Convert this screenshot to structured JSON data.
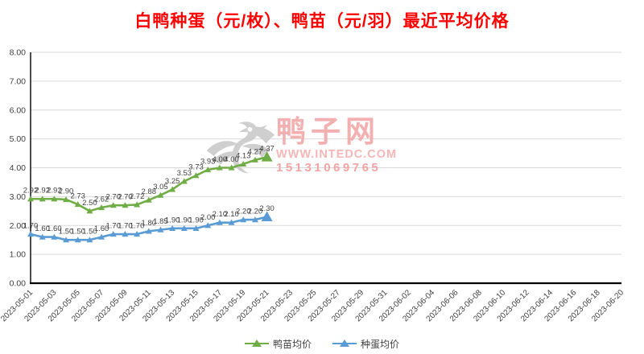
{
  "title": "白鸭种蛋（元/枚）、鸭苗（元/羽）最近平均价格",
  "title_color": "#FF0000",
  "watermark": {
    "logo_icon": "duck-wings-logo",
    "logo_color": "#C9C9C9",
    "site_name": "鸭子网",
    "url": "WWW.INTEDC.COM",
    "phone": "15131069765",
    "text_color": "#F2A3A3"
  },
  "chart_data": {
    "type": "line",
    "title": "白鸭种蛋（元/枚）、鸭苗（元/羽）最近平均价格",
    "x": [
      "2023-05-01",
      "2023-05-02",
      "2023-05-03",
      "2023-05-04",
      "2023-05-05",
      "2023-05-06",
      "2023-05-07",
      "2023-05-08",
      "2023-05-09",
      "2023-05-10",
      "2023-05-11",
      "2023-05-12",
      "2023-05-13",
      "2023-05-14",
      "2023-05-15",
      "2023-05-16",
      "2023-05-17",
      "2023-05-18",
      "2023-05-19",
      "2023-05-20",
      "2023-05-21"
    ],
    "x_axis_ticks": [
      "2023-05-01",
      "2023-05-03",
      "2023-05-05",
      "2023-05-07",
      "2023-05-09",
      "2023-05-11",
      "2023-05-13",
      "2023-05-15",
      "2023-05-17",
      "2023-05-19",
      "2023-05-21",
      "2023-05-23",
      "2023-05-25",
      "2023-05-27",
      "2023-05-29",
      "2023-05-31",
      "2023-06-02",
      "2023-06-04",
      "2023-06-06",
      "2023-06-08",
      "2023-06-10",
      "2023-06-12",
      "2023-06-14",
      "2023-06-16",
      "2023-06-18",
      "2023-06-20"
    ],
    "series": [
      {
        "name": "鸭苗均价",
        "color": "#70AD47",
        "marker": "triangle",
        "values": [
          2.92,
          2.92,
          2.92,
          2.9,
          2.73,
          2.5,
          2.62,
          2.7,
          2.7,
          2.72,
          2.88,
          3.05,
          3.25,
          3.53,
          3.73,
          3.93,
          4.0,
          4.0,
          4.13,
          4.27,
          4.37
        ]
      },
      {
        "name": "种蛋均价",
        "color": "#5B9BD5",
        "marker": "triangle",
        "values": [
          1.7,
          1.6,
          1.6,
          1.5,
          1.5,
          1.5,
          1.6,
          1.7,
          1.7,
          1.7,
          1.8,
          1.85,
          1.9,
          1.9,
          1.9,
          2.0,
          2.1,
          2.1,
          2.2,
          2.2,
          2.3
        ]
      }
    ],
    "ylim": [
      0,
      8
    ],
    "y_ticks": [
      "0.00",
      "1.00",
      "2.00",
      "3.00",
      "4.00",
      "5.00",
      "6.00",
      "7.00",
      "8.00"
    ],
    "grid": true,
    "data_labels": true,
    "legend_position": "bottom",
    "grid_color": "#D9D9D9",
    "axis_color": "#000000",
    "tick_label_color": "#404040",
    "data_label_color": "#3F3F3F"
  }
}
